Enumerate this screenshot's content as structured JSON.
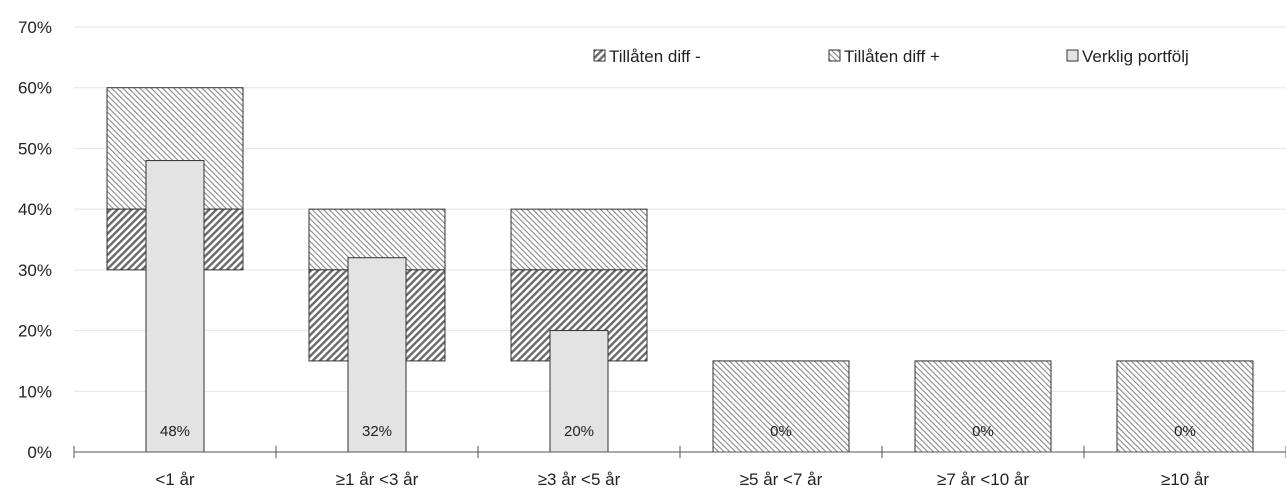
{
  "chart_data": {
    "type": "bar",
    "categories": [
      "<1 år",
      "≥1 år <3 år",
      "≥3 år <5 år",
      "≥5 år <7 år",
      "≥7 år <10 år",
      "≥10 år"
    ],
    "y_ticks": [
      "0%",
      "10%",
      "20%",
      "30%",
      "40%",
      "50%",
      "60%",
      "70%"
    ],
    "ylim": [
      0,
      70
    ],
    "grid": true,
    "legend_position": "top-right",
    "series": [
      {
        "name": "Tillåten diff -",
        "ranges": [
          [
            30,
            40
          ],
          [
            15,
            30
          ],
          [
            15,
            30
          ],
          [
            0,
            0
          ],
          [
            0,
            0
          ],
          [
            0,
            0
          ]
        ],
        "pattern": "dense-diagonal"
      },
      {
        "name": "Tillåten diff +",
        "ranges": [
          [
            40,
            60
          ],
          [
            30,
            40
          ],
          [
            30,
            40
          ],
          [
            0,
            15
          ],
          [
            0,
            15
          ],
          [
            0,
            15
          ]
        ],
        "pattern": "light-diagonal"
      },
      {
        "name": "Verklig portfölj",
        "values": [
          48,
          32,
          20,
          0,
          0,
          0
        ],
        "labels": [
          "48%",
          "32%",
          "20%",
          "0%",
          "0%",
          "0%"
        ],
        "color": "#e3e3e3"
      }
    ]
  }
}
